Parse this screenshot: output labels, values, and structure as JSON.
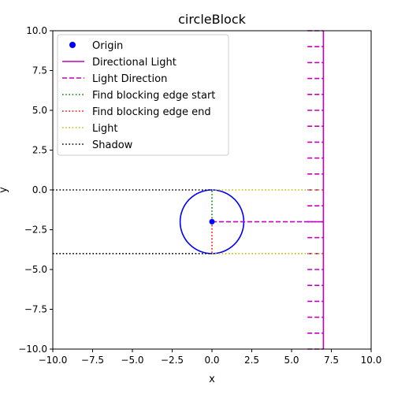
{
  "chart_data": {
    "type": "line",
    "title": "circleBlock",
    "xlabel": "x",
    "ylabel": "y",
    "xlim": [
      -10,
      10
    ],
    "ylim": [
      -10,
      10
    ],
    "xticks": [
      -10,
      -7.5,
      -5,
      -2.5,
      0,
      2.5,
      5,
      7.5,
      10
    ],
    "yticks": [
      -10,
      -7.5,
      -5,
      -2.5,
      0,
      2.5,
      5,
      7.5,
      10
    ],
    "xtick_labels": [
      "−10.0",
      "−7.5",
      "−5.0",
      "−2.5",
      "0.0",
      "2.5",
      "5.0",
      "7.5",
      "10.0"
    ],
    "ytick_labels": [
      "−10.0",
      "−7.5",
      "−5.0",
      "−2.5",
      "0.0",
      "2.5",
      "5.0",
      "7.5",
      "10.0"
    ],
    "grid": false,
    "legend_position": "top-left",
    "circle": {
      "center": [
        0,
        -2
      ],
      "radius": 2,
      "color": "#0000ff"
    },
    "light_arrows": {
      "x_start": 6,
      "x_end": 7,
      "y_values": [
        -10,
        -9,
        -8,
        -7,
        -6,
        -5,
        -4,
        -3,
        -2,
        -1,
        0,
        1,
        2,
        3,
        4,
        5,
        6,
        7,
        8,
        9,
        10
      ]
    },
    "series": [
      {
        "name": "Origin",
        "kind": "point",
        "color": "#0000ff",
        "points": [
          [
            0,
            -2
          ]
        ]
      },
      {
        "name": "Directional Light",
        "kind": "solid",
        "color": "#bf00bf",
        "segments": [
          [
            [
              7,
              -10
            ],
            [
              7,
              10
            ]
          ]
        ]
      },
      {
        "name": "Light Direction",
        "kind": "dashed",
        "color": "#bf00bf",
        "segments": [
          [
            [
              0,
              -2
            ],
            [
              7,
              -2
            ]
          ]
        ]
      },
      {
        "name": "Find blocking edge start",
        "kind": "dotted",
        "color": "#008000",
        "segments": [
          [
            [
              0,
              -2
            ],
            [
              0,
              0
            ]
          ]
        ]
      },
      {
        "name": "Find blocking edge end",
        "kind": "dotted",
        "color": "#ff0000",
        "segments": [
          [
            [
              0,
              -2
            ],
            [
              0,
              -4
            ]
          ]
        ]
      },
      {
        "name": "Light",
        "kind": "dotted",
        "color": "#bfbf00",
        "segments": [
          [
            [
              0,
              0
            ],
            [
              7,
              0
            ]
          ],
          [
            [
              0,
              -4
            ],
            [
              7,
              -4
            ]
          ]
        ]
      },
      {
        "name": "Shadow",
        "kind": "dotted",
        "color": "#000000",
        "segments": [
          [
            [
              -10,
              0
            ],
            [
              0,
              0
            ]
          ],
          [
            [
              -10,
              -4
            ],
            [
              0,
              -4
            ]
          ]
        ]
      }
    ]
  }
}
